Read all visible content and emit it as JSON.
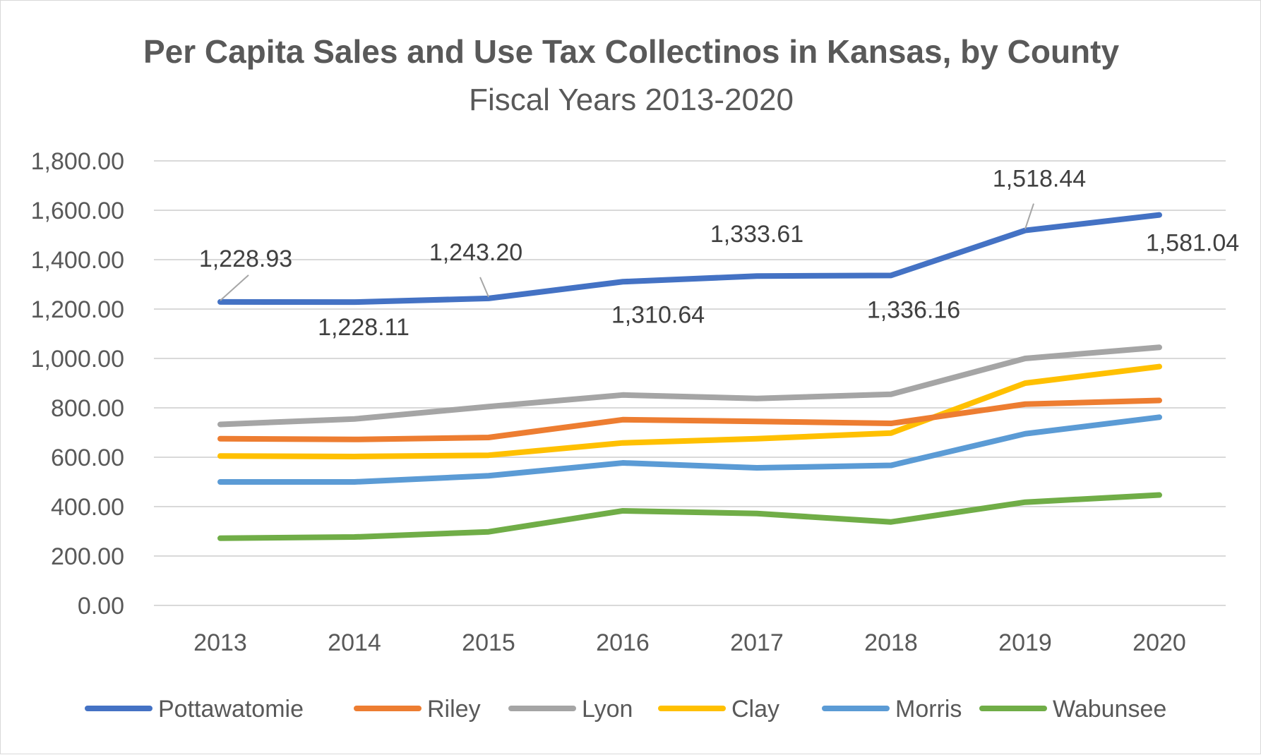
{
  "chart_data": {
    "type": "line",
    "title": "Per Capita Sales and Use Tax Collectinos in Kansas, by County",
    "subtitle": "Fiscal Years 2013-2020",
    "xlabel": "",
    "ylabel": "",
    "categories": [
      "2013",
      "2014",
      "2015",
      "2016",
      "2017",
      "2018",
      "2019",
      "2020"
    ],
    "ylim": [
      0,
      1800
    ],
    "yticks": [
      0,
      200,
      400,
      600,
      800,
      1000,
      1200,
      1400,
      1600,
      1800
    ],
    "ytick_labels": [
      "0.00",
      "200.00",
      "400.00",
      "600.00",
      "800.00",
      "1,000.00",
      "1,200.00",
      "1,400.00",
      "1,600.00",
      "1,800.00"
    ],
    "grid": true,
    "legend": "bottom",
    "series": [
      {
        "name": "Pottawatomie",
        "color": "#4472c4",
        "values": [
          1228.93,
          1228.11,
          1243.2,
          1310.64,
          1333.61,
          1336.16,
          1518.44,
          1581.04
        ],
        "labels": [
          "1,228.93",
          "1,228.11",
          "1,243.20",
          "1,310.64",
          "1,333.61",
          "1,336.16",
          "1,518.44",
          "1,581.04"
        ]
      },
      {
        "name": "Riley",
        "color": "#ed7d31",
        "values": [
          675,
          672,
          680,
          752,
          745,
          737,
          815,
          830
        ]
      },
      {
        "name": "Lyon",
        "color": "#a5a5a5",
        "values": [
          733,
          755,
          805,
          852,
          838,
          855,
          1000,
          1045
        ]
      },
      {
        "name": "Clay",
        "color": "#ffc000",
        "values": [
          605,
          603,
          608,
          658,
          675,
          698,
          900,
          967
        ]
      },
      {
        "name": "Morris",
        "color": "#5b9bd5",
        "values": [
          500,
          500,
          525,
          577,
          557,
          567,
          695,
          762
        ]
      },
      {
        "name": "Wabunsee",
        "color": "#70ad47",
        "values": [
          272,
          277,
          298,
          383,
          372,
          338,
          418,
          447
        ]
      }
    ]
  }
}
